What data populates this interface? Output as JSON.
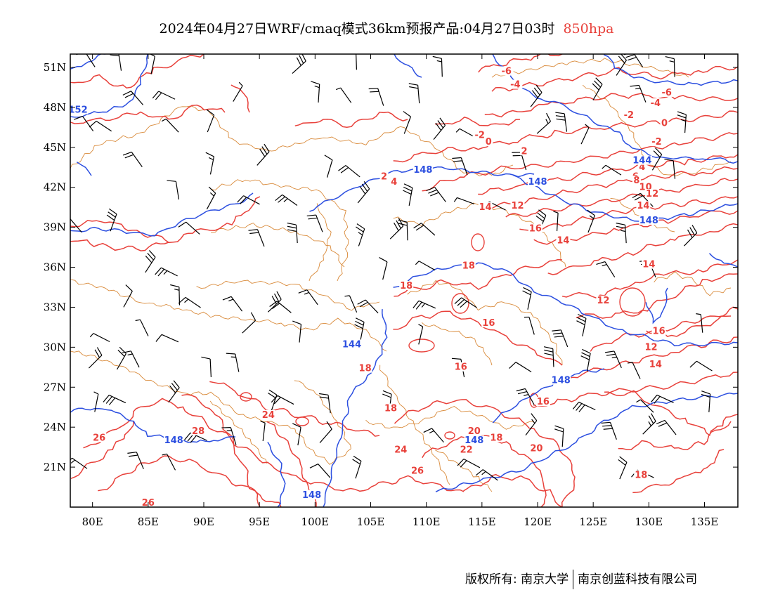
{
  "header": {
    "title": "2024年04月27日WRF/cmaq模式36km预报产品:04月27日03时",
    "level": "850hpa"
  },
  "colors": {
    "temperature": "#e8403a",
    "height": "#2c4fe0",
    "border": "#d98a3a",
    "wind": "#000000",
    "level_text": "#e8403a"
  },
  "map": {
    "lon_range": [
      78,
      138
    ],
    "lat_range": [
      18,
      52
    ],
    "lat_ticks": [
      "51N",
      "48N",
      "45N",
      "42N",
      "39N",
      "36N",
      "33N",
      "30N",
      "27N",
      "24N",
      "21N"
    ],
    "lon_ticks": [
      "80E",
      "85E",
      "90E",
      "95E",
      "100E",
      "105E",
      "110E",
      "115E",
      "120E",
      "125E",
      "130E",
      "135E"
    ],
    "temperature_labels": [
      {
        "text": "-6",
        "lon": 117.2,
        "lat": 50.6
      },
      {
        "text": "-4",
        "lon": 118.0,
        "lat": 49.6
      },
      {
        "text": "-6",
        "lon": 131.6,
        "lat": 49.0
      },
      {
        "text": "-4",
        "lon": 130.6,
        "lat": 48.2
      },
      {
        "text": "-2",
        "lon": 128.2,
        "lat": 47.3
      },
      {
        "text": "0",
        "lon": 131.4,
        "lat": 46.7
      },
      {
        "text": "-2",
        "lon": 130.7,
        "lat": 45.3
      },
      {
        "text": "-2",
        "lon": 114.8,
        "lat": 45.8
      },
      {
        "text": "0",
        "lon": 115.6,
        "lat": 45.3
      },
      {
        "text": "2",
        "lon": 118.8,
        "lat": 44.6
      },
      {
        "text": "2",
        "lon": 106.2,
        "lat": 42.7
      },
      {
        "text": "4",
        "lon": 107.1,
        "lat": 42.3
      },
      {
        "text": "4",
        "lon": 129.4,
        "lat": 43.4
      },
      {
        "text": "6",
        "lon": 128.8,
        "lat": 42.7
      },
      {
        "text": "8",
        "lon": 128.9,
        "lat": 42.4
      },
      {
        "text": "10",
        "lon": 129.7,
        "lat": 41.9
      },
      {
        "text": "12",
        "lon": 130.3,
        "lat": 41.4
      },
      {
        "text": "14",
        "lon": 129.5,
        "lat": 40.5
      },
      {
        "text": "12",
        "lon": 118.2,
        "lat": 40.5
      },
      {
        "text": "14",
        "lon": 115.3,
        "lat": 40.4
      },
      {
        "text": "16",
        "lon": 119.8,
        "lat": 38.8
      },
      {
        "text": "14",
        "lon": 122.3,
        "lat": 37.9
      },
      {
        "text": "14",
        "lon": 130.0,
        "lat": 36.1
      },
      {
        "text": "18",
        "lon": 113.8,
        "lat": 36.0
      },
      {
        "text": "18",
        "lon": 108.2,
        "lat": 34.5
      },
      {
        "text": "12",
        "lon": 125.9,
        "lat": 33.4
      },
      {
        "text": "16",
        "lon": 115.6,
        "lat": 31.7
      },
      {
        "text": "16",
        "lon": 130.9,
        "lat": 31.1
      },
      {
        "text": "12",
        "lon": 130.2,
        "lat": 29.9
      },
      {
        "text": "14",
        "lon": 130.6,
        "lat": 28.6
      },
      {
        "text": "16",
        "lon": 113.1,
        "lat": 28.4
      },
      {
        "text": "18",
        "lon": 104.5,
        "lat": 28.3
      },
      {
        "text": "18",
        "lon": 106.8,
        "lat": 25.3
      },
      {
        "text": "16",
        "lon": 120.5,
        "lat": 25.8
      },
      {
        "text": "24",
        "lon": 95.8,
        "lat": 24.8
      },
      {
        "text": "28",
        "lon": 89.5,
        "lat": 23.6
      },
      {
        "text": "26",
        "lon": 80.6,
        "lat": 23.1
      },
      {
        "text": "20",
        "lon": 114.3,
        "lat": 23.6
      },
      {
        "text": "18",
        "lon": 116.3,
        "lat": 23.1
      },
      {
        "text": "24",
        "lon": 107.7,
        "lat": 22.2
      },
      {
        "text": "22",
        "lon": 113.6,
        "lat": 22.2
      },
      {
        "text": "20",
        "lon": 119.9,
        "lat": 22.3
      },
      {
        "text": "26",
        "lon": 109.2,
        "lat": 20.6
      },
      {
        "text": "18",
        "lon": 129.3,
        "lat": 20.3
      },
      {
        "text": "26",
        "lon": 85.0,
        "lat": 18.2
      }
    ],
    "height_labels": [
      {
        "text": "152",
        "lon": 78.7,
        "lat": 47.7
      },
      {
        "text": "148",
        "lon": 109.7,
        "lat": 43.2
      },
      {
        "text": "148",
        "lon": 120.0,
        "lat": 42.3
      },
      {
        "text": "144",
        "lon": 129.4,
        "lat": 43.9
      },
      {
        "text": "148",
        "lon": 130.0,
        "lat": 39.4
      },
      {
        "text": "144",
        "lon": 103.3,
        "lat": 30.1
      },
      {
        "text": "148",
        "lon": 122.1,
        "lat": 27.4
      },
      {
        "text": "148",
        "lon": 114.3,
        "lat": 22.9
      },
      {
        "text": "148",
        "lon": 87.3,
        "lat": 22.9
      },
      {
        "text": "148",
        "lon": 99.7,
        "lat": 18.8
      }
    ]
  },
  "footer": {
    "copyright": "版权所有: 南京大学",
    "company": "南京创蓝科技有限公司"
  }
}
